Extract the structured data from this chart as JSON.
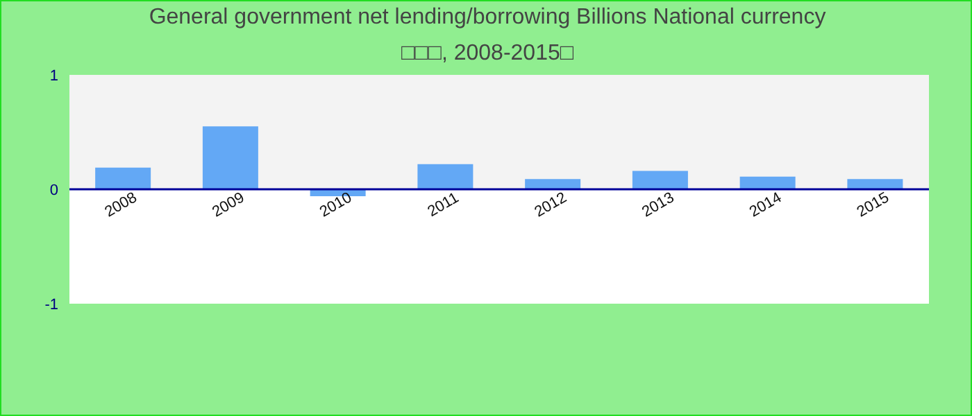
{
  "chart_data": {
    "type": "bar",
    "title": "General government net lending/borrowing Billions National currency",
    "subtitle": "□□□, 2008-2015□",
    "categories": [
      "2008",
      "2009",
      "2010",
      "2011",
      "2012",
      "2013",
      "2014",
      "2015"
    ],
    "values": [
      0.19,
      0.55,
      -0.06,
      0.22,
      0.09,
      0.16,
      0.11,
      0.09
    ],
    "color": "#63a8f5",
    "ylim": [
      -1,
      1
    ],
    "yticks": [
      -1,
      0,
      1
    ],
    "grid": false,
    "bands": [
      {
        "axis": "y",
        "from": 0,
        "to": 1,
        "color": "#f3f3f3"
      }
    ]
  }
}
